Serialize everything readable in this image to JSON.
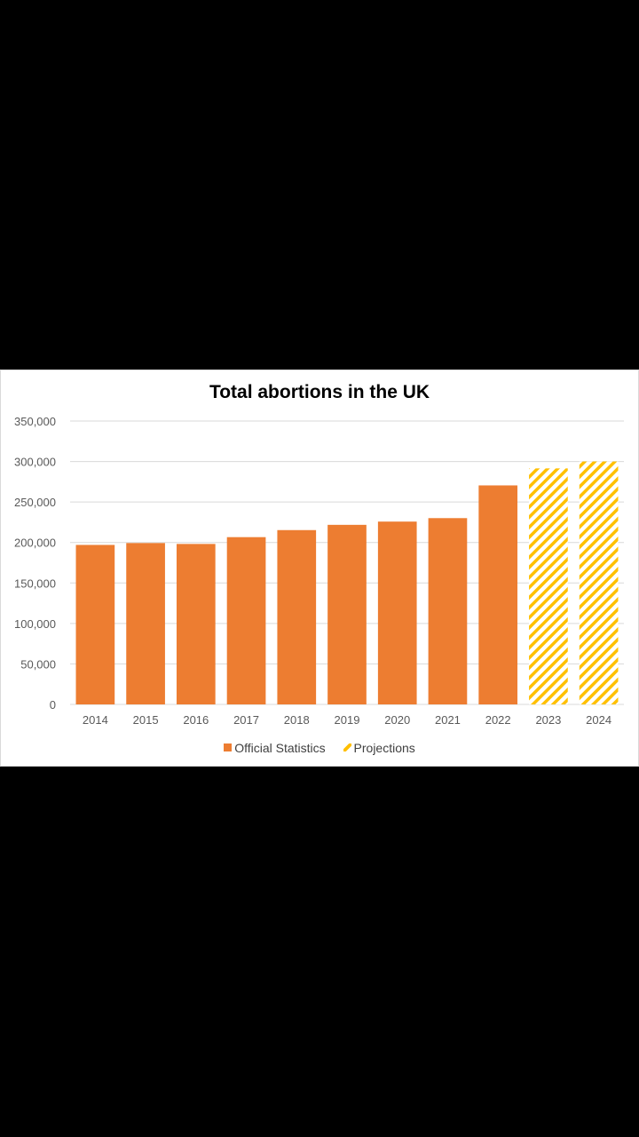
{
  "chart_data": {
    "type": "bar",
    "title": "Total abortions in the UK",
    "categories": [
      "2014",
      "2015",
      "2016",
      "2017",
      "2018",
      "2019",
      "2020",
      "2021",
      "2022",
      "2023",
      "2024"
    ],
    "series": [
      {
        "name": "Official Statistics",
        "color": "#ED7D31",
        "pattern": "solid",
        "values": [
          197000,
          199300,
          198200,
          206600,
          215300,
          221800,
          225800,
          230100,
          270500,
          null,
          null
        ]
      },
      {
        "name": "Projections",
        "color": "#FFC000",
        "pattern": "diagonal-stripes",
        "values": [
          null,
          null,
          null,
          null,
          null,
          null,
          null,
          null,
          null,
          291500,
          300000
        ]
      }
    ],
    "yticks": [
      "0",
      "50,000",
      "100,000",
      "150,000",
      "200,000",
      "250,000",
      "300,000",
      "350,000"
    ],
    "ylim": [
      0,
      350000
    ],
    "xlabel": "",
    "ylabel": "",
    "grid": true,
    "legend": "bottom"
  }
}
